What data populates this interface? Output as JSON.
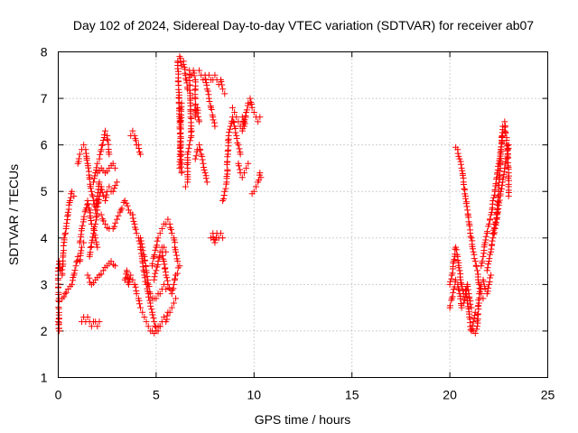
{
  "chart_data": {
    "type": "scatter",
    "title": "Day 102 of 2024, Sidereal Day-to-day VTEC variation (SDTVAR) for receiver ab07",
    "xlabel": "GPS time / hours",
    "ylabel": "SDTVAR / TECUs",
    "xlim": [
      0,
      25
    ],
    "ylim": [
      1,
      8
    ],
    "xticks": [
      0,
      5,
      10,
      15,
      20,
      25
    ],
    "yticks": [
      1,
      2,
      3,
      4,
      5,
      6,
      7,
      8
    ],
    "xtick_labels": [
      "0",
      "5",
      "10",
      "15",
      "20",
      "25"
    ],
    "ytick_labels": [
      "1",
      "2",
      "3",
      "4",
      "5",
      "6",
      "7",
      "8"
    ],
    "grid": true,
    "marker": "+",
    "color": "#ff0000",
    "segments": [
      [
        [
          0.0,
          2.2
        ],
        [
          0.05,
          2.0
        ],
        [
          0.0,
          3.2
        ],
        [
          0.05,
          3.5
        ],
        [
          0.1,
          3.3
        ],
        [
          0.2,
          3.2
        ],
        [
          0.3,
          4.0
        ],
        [
          0.4,
          4.2
        ],
        [
          0.5,
          4.5
        ],
        [
          0.6,
          4.8
        ],
        [
          0.7,
          5.0
        ],
        [
          0.8,
          4.9
        ]
      ],
      [
        [
          0.2,
          2.7
        ],
        [
          0.35,
          2.8
        ],
        [
          0.5,
          2.9
        ],
        [
          0.7,
          3.0
        ],
        [
          0.8,
          3.2
        ],
        [
          0.9,
          3.4
        ],
        [
          1.0,
          3.6
        ],
        [
          1.1,
          3.5
        ],
        [
          1.2,
          3.8
        ],
        [
          1.3,
          3.9
        ]
      ],
      [
        [
          1.0,
          5.6
        ],
        [
          1.1,
          5.8
        ],
        [
          1.2,
          5.9
        ],
        [
          1.3,
          6.0
        ],
        [
          1.4,
          5.9
        ],
        [
          1.5,
          5.6
        ],
        [
          1.6,
          5.3
        ],
        [
          1.7,
          5.0
        ],
        [
          1.8,
          4.8
        ],
        [
          1.9,
          4.6
        ],
        [
          2.0,
          4.9
        ],
        [
          2.1,
          5.2
        ]
      ],
      [
        [
          1.1,
          3.9
        ],
        [
          1.2,
          4.2
        ],
        [
          1.3,
          4.4
        ],
        [
          1.4,
          4.6
        ],
        [
          1.5,
          4.8
        ],
        [
          1.6,
          4.6
        ],
        [
          1.7,
          4.3
        ],
        [
          1.8,
          4.2
        ],
        [
          1.9,
          4.0
        ],
        [
          2.0,
          3.8
        ]
      ],
      [
        [
          1.2,
          2.2
        ],
        [
          1.3,
          2.3
        ],
        [
          1.4,
          2.2
        ],
        [
          1.5,
          2.3
        ],
        [
          1.6,
          2.2
        ],
        [
          1.7,
          2.1
        ],
        [
          1.8,
          2.2
        ],
        [
          1.9,
          2.2
        ],
        [
          2.0,
          2.1
        ],
        [
          2.1,
          2.2
        ]
      ],
      [
        [
          1.5,
          3.2
        ],
        [
          1.7,
          3.0
        ],
        [
          1.9,
          3.1
        ],
        [
          2.1,
          3.2
        ],
        [
          2.3,
          3.3
        ],
        [
          2.5,
          3.4
        ],
        [
          2.7,
          3.5
        ],
        [
          2.9,
          3.4
        ]
      ],
      [
        [
          1.6,
          3.6
        ],
        [
          1.7,
          3.9
        ],
        [
          1.8,
          4.1
        ],
        [
          1.9,
          4.3
        ],
        [
          2.0,
          4.6
        ],
        [
          2.1,
          4.9
        ],
        [
          2.2,
          5.1
        ],
        [
          2.3,
          4.9
        ],
        [
          2.4,
          4.8
        ],
        [
          2.5,
          5.0
        ],
        [
          2.6,
          5.1
        ],
        [
          2.7,
          5.0
        ],
        [
          2.8,
          5.0
        ],
        [
          3.0,
          5.2
        ]
      ],
      [
        [
          1.8,
          5.2
        ],
        [
          1.9,
          5.4
        ],
        [
          2.0,
          5.6
        ],
        [
          2.1,
          5.7
        ],
        [
          2.2,
          5.9
        ],
        [
          2.3,
          6.1
        ],
        [
          2.4,
          6.3
        ],
        [
          2.5,
          6.2
        ],
        [
          2.6,
          5.8
        ]
      ],
      [
        [
          2.0,
          5.4
        ],
        [
          2.2,
          5.5
        ],
        [
          2.4,
          5.4
        ],
        [
          2.6,
          5.5
        ],
        [
          2.8,
          5.6
        ],
        [
          2.9,
          5.5
        ]
      ],
      [
        [
          2.2,
          4.5
        ],
        [
          2.4,
          4.3
        ],
        [
          2.6,
          4.2
        ],
        [
          2.8,
          4.2
        ],
        [
          3.0,
          4.4
        ],
        [
          3.2,
          4.6
        ],
        [
          3.4,
          4.8
        ],
        [
          3.6,
          4.6
        ],
        [
          3.8,
          4.5
        ]
      ],
      [
        [
          3.4,
          3.1
        ],
        [
          3.5,
          3.3
        ],
        [
          3.6,
          3.0
        ],
        [
          3.7,
          3.2
        ],
        [
          3.8,
          3.1
        ],
        [
          3.9,
          3.0
        ]
      ],
      [
        [
          3.7,
          6.2
        ],
        [
          3.8,
          6.3
        ],
        [
          3.9,
          6.2
        ],
        [
          4.0,
          6.0
        ],
        [
          4.1,
          6.0
        ],
        [
          4.2,
          5.8
        ]
      ],
      [
        [
          3.8,
          4.5
        ],
        [
          3.9,
          4.3
        ],
        [
          4.0,
          4.1
        ],
        [
          4.1,
          4.0
        ],
        [
          4.2,
          3.8
        ],
        [
          4.3,
          3.5
        ],
        [
          4.4,
          3.2
        ],
        [
          4.5,
          3.0
        ],
        [
          4.6,
          2.8
        ],
        [
          4.7,
          2.6
        ],
        [
          4.8,
          2.4
        ],
        [
          4.9,
          2.2
        ],
        [
          5.0,
          2.0
        ],
        [
          5.1,
          2.1
        ],
        [
          5.2,
          2.1
        ],
        [
          5.3,
          2.2
        ],
        [
          5.4,
          2.3
        ],
        [
          5.5,
          2.2
        ],
        [
          5.6,
          2.4
        ],
        [
          5.7,
          2.4
        ],
        [
          5.8,
          2.5
        ],
        [
          5.9,
          2.6
        ],
        [
          6.0,
          2.7
        ]
      ],
      [
        [
          3.9,
          3.0
        ],
        [
          4.0,
          2.8
        ],
        [
          4.1,
          2.7
        ],
        [
          4.2,
          2.5
        ],
        [
          4.3,
          2.4
        ],
        [
          4.4,
          2.3
        ],
        [
          4.5,
          2.2
        ],
        [
          4.6,
          2.1
        ],
        [
          4.7,
          2.0
        ],
        [
          4.8,
          2.0
        ],
        [
          4.9,
          1.95
        ],
        [
          5.0,
          2.0
        ],
        [
          5.1,
          2.0
        ],
        [
          5.2,
          2.1
        ]
      ],
      [
        [
          4.2,
          4.0
        ],
        [
          4.3,
          3.8
        ],
        [
          4.4,
          3.6
        ],
        [
          4.5,
          3.3
        ],
        [
          4.6,
          3.0
        ],
        [
          4.7,
          2.8
        ],
        [
          4.8,
          2.7
        ],
        [
          4.9,
          2.7
        ],
        [
          5.0,
          2.7
        ],
        [
          5.1,
          2.8
        ],
        [
          5.2,
          2.8
        ],
        [
          5.3,
          2.9
        ],
        [
          5.4,
          3.0
        ],
        [
          5.5,
          2.9
        ]
      ],
      [
        [
          4.8,
          3.4
        ],
        [
          4.9,
          3.6
        ],
        [
          5.0,
          3.8
        ],
        [
          5.1,
          4.0
        ],
        [
          5.2,
          4.1
        ],
        [
          5.3,
          4.2
        ],
        [
          5.4,
          4.3
        ]
      ],
      [
        [
          4.9,
          3.1
        ],
        [
          5.0,
          3.3
        ],
        [
          5.1,
          3.5
        ],
        [
          5.2,
          3.7
        ],
        [
          5.3,
          3.8
        ],
        [
          5.4,
          3.8
        ],
        [
          5.5,
          3.7
        ]
      ],
      [
        [
          5.5,
          4.3
        ],
        [
          5.6,
          4.4
        ],
        [
          5.7,
          4.3
        ],
        [
          5.8,
          4.1
        ],
        [
          5.9,
          4.0
        ],
        [
          6.0,
          3.7
        ],
        [
          6.1,
          3.5
        ],
        [
          6.2,
          3.4
        ],
        [
          6.0,
          3.2
        ],
        [
          5.9,
          3.0
        ],
        [
          5.8,
          2.8
        ],
        [
          5.6,
          3.0
        ],
        [
          5.5,
          3.2
        ],
        [
          5.4,
          3.5
        ],
        [
          5.3,
          3.7
        ]
      ],
      [
        [
          6.2,
          6.8
        ],
        [
          6.3,
          6.9
        ],
        [
          6.2,
          5.5
        ],
        [
          6.3,
          5.4
        ],
        [
          6.1,
          7.8
        ],
        [
          6.2,
          7.9
        ],
        [
          6.3,
          7.7
        ],
        [
          6.4,
          7.8
        ],
        [
          6.5,
          7.5
        ],
        [
          6.6,
          7.2
        ]
      ],
      [
        [
          6.5,
          5.1
        ],
        [
          6.6,
          5.2
        ],
        [
          6.6,
          5.8
        ],
        [
          6.7,
          6.0
        ],
        [
          6.8,
          6.2
        ],
        [
          6.7,
          7.6
        ],
        [
          6.8,
          7.5
        ],
        [
          6.9,
          7.6
        ],
        [
          7.0,
          7.4
        ],
        [
          7.0,
          6.6
        ],
        [
          7.1,
          6.8
        ],
        [
          7.2,
          6.5
        ]
      ],
      [
        [
          7.0,
          5.7
        ],
        [
          7.1,
          5.9
        ],
        [
          7.2,
          6.0
        ],
        [
          7.3,
          5.8
        ],
        [
          7.4,
          5.6
        ],
        [
          7.5,
          5.4
        ],
        [
          7.6,
          5.2
        ]
      ],
      [
        [
          7.2,
          7.6
        ],
        [
          7.3,
          7.5
        ],
        [
          7.4,
          7.4
        ],
        [
          7.5,
          7.5
        ],
        [
          7.6,
          7.2
        ],
        [
          7.7,
          7.0
        ],
        [
          7.8,
          6.8
        ],
        [
          7.9,
          6.6
        ],
        [
          8.0,
          6.4
        ]
      ],
      [
        [
          7.7,
          7.5
        ],
        [
          7.8,
          7.4
        ],
        [
          7.9,
          7.4
        ],
        [
          8.0,
          7.5
        ],
        [
          8.1,
          7.4
        ],
        [
          8.2,
          7.3
        ],
        [
          8.3,
          7.4
        ],
        [
          8.4,
          7.2
        ],
        [
          8.5,
          7.1
        ]
      ],
      [
        [
          7.8,
          4.0
        ],
        [
          7.9,
          4.1
        ],
        [
          8.0,
          3.9
        ],
        [
          8.1,
          4.1
        ],
        [
          8.2,
          4.0
        ],
        [
          8.3,
          4.1
        ],
        [
          8.4,
          4.0
        ]
      ],
      [
        [
          8.4,
          4.8
        ],
        [
          8.5,
          5.0
        ],
        [
          8.6,
          5.2
        ],
        [
          8.7,
          6.2
        ],
        [
          8.8,
          6.4
        ],
        [
          8.9,
          6.6
        ],
        [
          9.0,
          6.4
        ],
        [
          9.1,
          6.2
        ],
        [
          9.2,
          6.0
        ],
        [
          9.3,
          5.8
        ]
      ],
      [
        [
          8.9,
          6.8
        ],
        [
          9.0,
          6.7
        ],
        [
          9.1,
          6.6
        ],
        [
          9.2,
          6.5
        ],
        [
          9.3,
          6.4
        ],
        [
          9.4,
          6.3
        ],
        [
          9.5,
          6.5
        ]
      ],
      [
        [
          9.2,
          5.6
        ],
        [
          9.3,
          5.4
        ],
        [
          9.4,
          5.3
        ],
        [
          9.5,
          5.4
        ],
        [
          9.6,
          5.5
        ],
        [
          9.7,
          5.6
        ]
      ],
      [
        [
          9.4,
          6.6
        ],
        [
          9.5,
          6.4
        ],
        [
          9.6,
          6.7
        ],
        [
          9.7,
          6.9
        ],
        [
          9.8,
          7.0
        ],
        [
          9.9,
          6.8
        ],
        [
          10.0,
          6.7
        ],
        [
          10.1,
          6.6
        ],
        [
          10.2,
          6.5
        ],
        [
          10.3,
          6.6
        ]
      ],
      [
        [
          9.9,
          4.95
        ],
        [
          10.0,
          5.0
        ],
        [
          10.1,
          5.1
        ],
        [
          10.2,
          5.2
        ],
        [
          10.3,
          5.4
        ],
        [
          10.35,
          5.3
        ]
      ],
      [
        [
          20.0,
          3.0
        ],
        [
          20.1,
          3.2
        ],
        [
          20.2,
          3.5
        ],
        [
          20.3,
          3.8
        ],
        [
          20.4,
          3.6
        ],
        [
          20.5,
          3.3
        ],
        [
          20.6,
          3.0
        ],
        [
          20.7,
          2.8
        ],
        [
          20.8,
          2.9
        ],
        [
          20.9,
          2.6
        ],
        [
          21.0,
          2.3
        ],
        [
          21.1,
          2.0
        ],
        [
          21.2,
          2.2
        ],
        [
          21.3,
          2.4
        ]
      ],
      [
        [
          20.0,
          2.5
        ],
        [
          20.1,
          2.7
        ],
        [
          20.2,
          2.9
        ],
        [
          20.3,
          3.1
        ],
        [
          20.4,
          3.0
        ],
        [
          20.5,
          2.8
        ],
        [
          20.6,
          2.5
        ],
        [
          20.7,
          2.6
        ],
        [
          20.8,
          2.8
        ],
        [
          20.9,
          3.0
        ],
        [
          21.0,
          2.7
        ],
        [
          21.1,
          2.5
        ]
      ],
      [
        [
          20.3,
          5.95
        ],
        [
          20.4,
          5.9
        ],
        [
          20.5,
          5.7
        ],
        [
          20.6,
          5.5
        ],
        [
          20.7,
          5.2
        ],
        [
          20.8,
          4.9
        ],
        [
          20.9,
          4.6
        ],
        [
          21.0,
          4.3
        ],
        [
          21.1,
          4.0
        ],
        [
          21.2,
          3.7
        ],
        [
          21.3,
          3.5
        ],
        [
          21.4,
          3.3
        ],
        [
          21.5,
          3.0
        ],
        [
          21.6,
          2.8
        ],
        [
          21.7,
          2.7
        ]
      ],
      [
        [
          21.2,
          2.0
        ],
        [
          21.3,
          1.95
        ],
        [
          21.4,
          2.1
        ],
        [
          21.5,
          2.8
        ],
        [
          21.6,
          3.0
        ],
        [
          21.7,
          3.1
        ],
        [
          21.8,
          2.9
        ],
        [
          21.9,
          2.8
        ],
        [
          22.0,
          3.0
        ],
        [
          22.1,
          3.2
        ]
      ],
      [
        [
          21.6,
          3.4
        ],
        [
          21.7,
          3.6
        ],
        [
          21.8,
          3.9
        ],
        [
          21.9,
          4.1
        ],
        [
          22.0,
          4.3
        ],
        [
          22.1,
          4.5
        ],
        [
          22.2,
          4.8
        ],
        [
          22.3,
          5.0
        ],
        [
          22.4,
          5.3
        ],
        [
          22.5,
          5.6
        ],
        [
          22.6,
          5.9
        ],
        [
          22.7,
          6.2
        ],
        [
          22.8,
          6.3
        ]
      ],
      [
        [
          21.9,
          3.3
        ],
        [
          22.0,
          3.5
        ],
        [
          22.1,
          3.7
        ],
        [
          22.2,
          4.0
        ],
        [
          22.3,
          4.2
        ],
        [
          22.4,
          4.4
        ],
        [
          22.5,
          4.7
        ],
        [
          22.6,
          5.0
        ],
        [
          22.7,
          5.2
        ],
        [
          22.8,
          5.5
        ],
        [
          22.9,
          5.7
        ],
        [
          23.0,
          6.0
        ]
      ],
      [
        [
          22.2,
          4.1
        ],
        [
          22.3,
          4.3
        ],
        [
          22.4,
          4.5
        ],
        [
          22.5,
          5.0
        ],
        [
          22.6,
          5.8
        ],
        [
          22.7,
          6.4
        ],
        [
          22.8,
          6.5
        ],
        [
          22.9,
          6.1
        ],
        [
          23.0,
          5.4
        ],
        [
          23.0,
          4.9
        ]
      ]
    ]
  }
}
